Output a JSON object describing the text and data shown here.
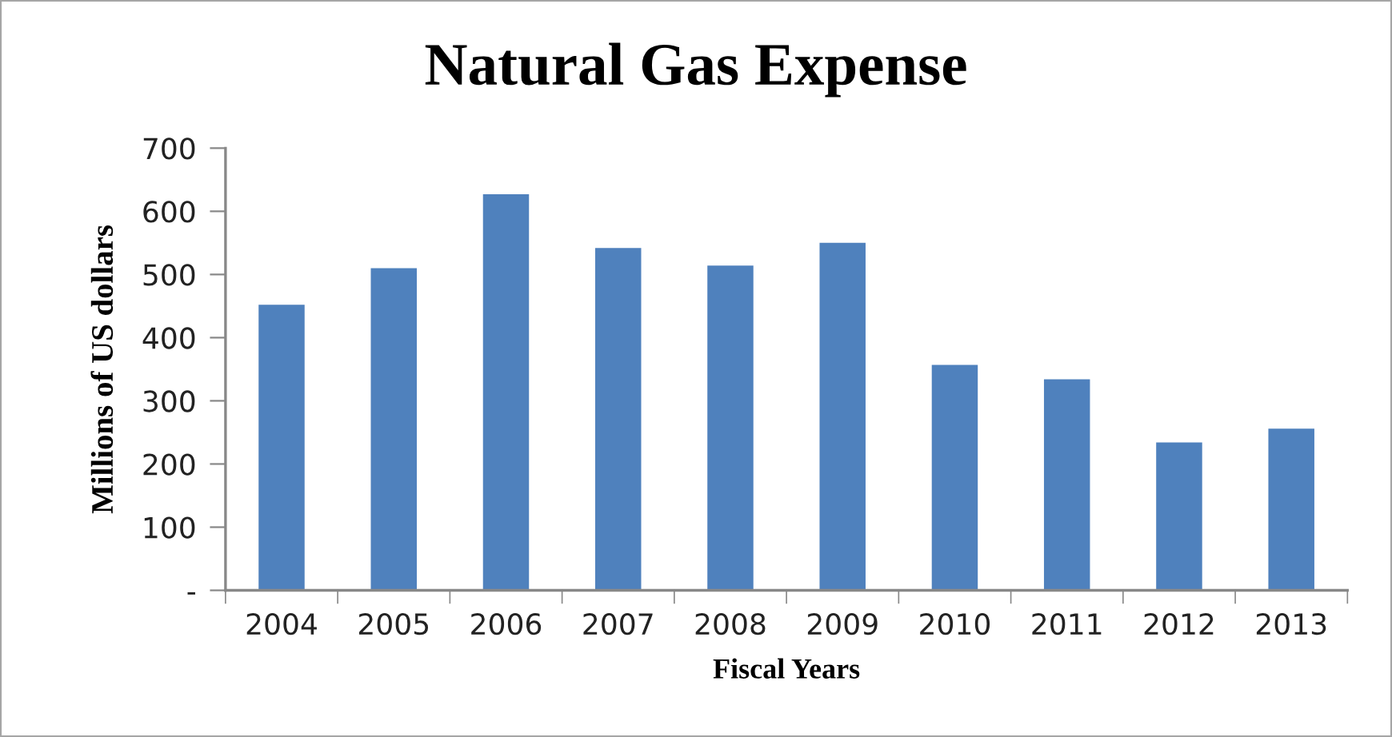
{
  "chart_data": {
    "type": "bar",
    "title": "Natural Gas Expense",
    "xlabel": "Fiscal Years",
    "ylabel": "Millions of US dollars",
    "categories": [
      "2004",
      "2005",
      "2006",
      "2007",
      "2008",
      "2009",
      "2010",
      "2011",
      "2012",
      "2013"
    ],
    "values": [
      452,
      510,
      627,
      542,
      514,
      550,
      357,
      334,
      234,
      256
    ],
    "color": "#4f81bd",
    "ylim": [
      0,
      700
    ],
    "yticks": [
      {
        "value": 0,
        "label": "-"
      },
      100,
      200,
      300,
      400,
      500,
      600,
      700
    ],
    "grid": false,
    "legend": false
  }
}
